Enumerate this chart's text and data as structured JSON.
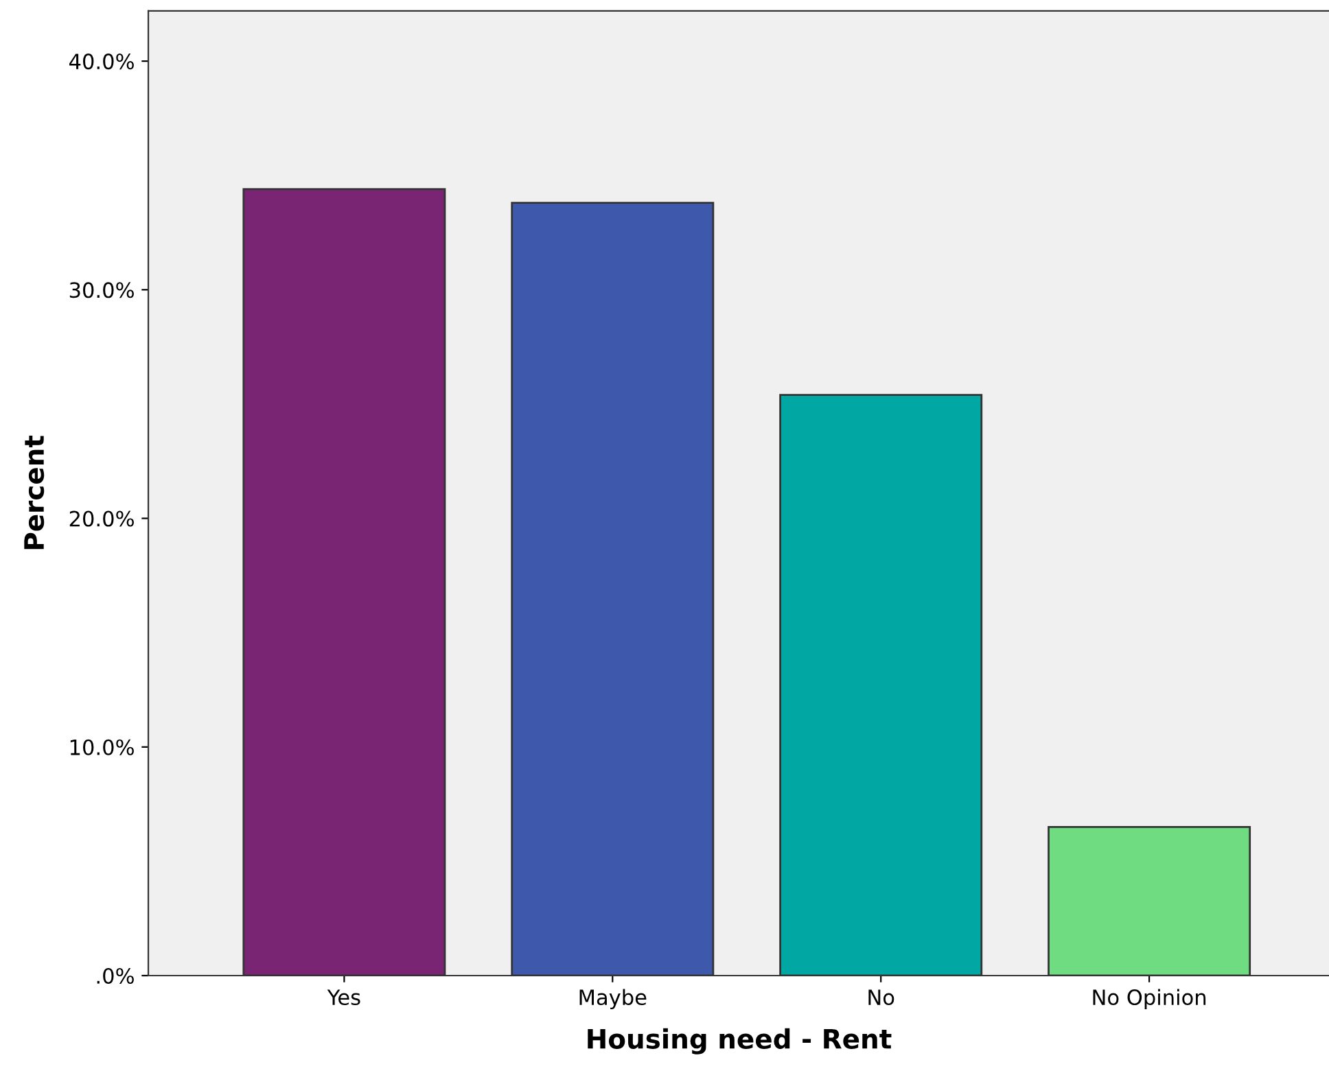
{
  "chart_data": {
    "type": "bar",
    "xlabel": "Housing need - Rent",
    "ylabel": "Percent",
    "categories": [
      "Yes",
      "Maybe",
      "No",
      "No Opinion"
    ],
    "values": [
      34.4,
      33.8,
      25.4,
      6.5
    ],
    "colors": [
      "#7a2574",
      "#3e58ab",
      "#00a7a3",
      "#70dc82"
    ],
    "ylim": [
      0,
      42.2
    ],
    "yticks": [
      {
        "value": 0,
        "label": ".0%"
      },
      {
        "value": 10,
        "label": "10.0%"
      },
      {
        "value": 20,
        "label": "20.0%"
      },
      {
        "value": 30,
        "label": "30.0%"
      },
      {
        "value": 40,
        "label": "40.0%"
      }
    ],
    "grid": false
  }
}
